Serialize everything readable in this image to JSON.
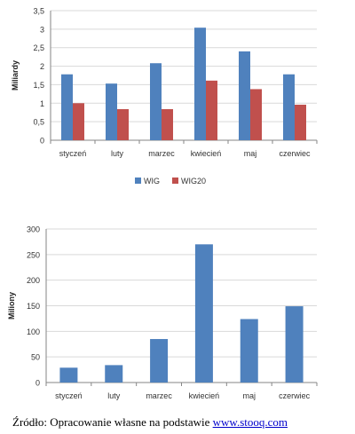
{
  "chart_data": [
    {
      "type": "bar",
      "ylabel": "Miliardy",
      "xlabel": "",
      "categories": [
        "styczeń",
        "luty",
        "marzec",
        "kwiecień",
        "maj",
        "czerwiec"
      ],
      "ylim": [
        0,
        3.5
      ],
      "yticks": [
        0,
        0.5,
        1,
        1.5,
        2,
        2.5,
        3,
        3.5
      ],
      "ytick_labels": [
        "0",
        "0,5",
        "1",
        "1,5",
        "2",
        "2,5",
        "3",
        "3,5"
      ],
      "grid": true,
      "legend": "bottom",
      "series": [
        {
          "name": "WIG",
          "color": "#4f81bd",
          "values": [
            1.78,
            1.53,
            2.08,
            3.04,
            2.4,
            1.78
          ]
        },
        {
          "name": "WIG20",
          "color": "#c0504d",
          "values": [
            1.0,
            0.84,
            0.84,
            1.61,
            1.38,
            0.96
          ]
        }
      ]
    },
    {
      "type": "bar",
      "ylabel": "Miliony",
      "xlabel": "",
      "categories": [
        "styczeń",
        "luty",
        "marzec",
        "kwiecień",
        "maj",
        "czerwiec"
      ],
      "ylim": [
        0,
        300
      ],
      "yticks": [
        0,
        50,
        100,
        150,
        200,
        250,
        300
      ],
      "ytick_labels": [
        "0",
        "50",
        "100",
        "150",
        "200",
        "250",
        "300"
      ],
      "grid": true,
      "legend": "none",
      "series": [
        {
          "color": "#4f81bd",
          "values": [
            29,
            34,
            85,
            270,
            124,
            149
          ]
        }
      ]
    }
  ],
  "source": {
    "prefix": "Źródło: Opracowanie własne na podstawie ",
    "link_text": "www.stooq.com"
  }
}
